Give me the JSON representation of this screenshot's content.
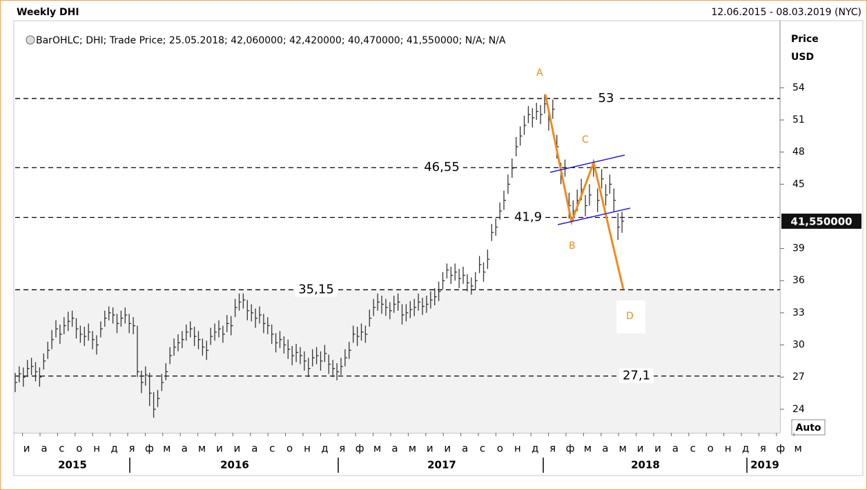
{
  "chart_data": {
    "type": "ohlc",
    "title": "Weekly DHI",
    "date_range": "12.06.2015 - 08.03.2019 (NYC)",
    "legend": "BarOHLC; DHI; Trade Price; 25.05.2018; 42,060000; 42,420000; 40,470000; 41,550000; N/A; N/A",
    "y_axis_label": "Price",
    "y_axis_unit": "USD",
    "scale_button": "Auto",
    "last_value_label": "41,550000",
    "ylim": [
      21.8,
      59.3
    ],
    "yticks": [
      24,
      27,
      30,
      33,
      36,
      39,
      45,
      48,
      51,
      54
    ],
    "months": [
      "и",
      "а",
      "с",
      "о",
      "н",
      "д",
      "я",
      "ф",
      "м",
      "а",
      "м",
      "и",
      "и",
      "а",
      "с",
      "о",
      "н",
      "д",
      "я",
      "ф",
      "м",
      "а",
      "м",
      "и",
      "и",
      "а",
      "с",
      "о",
      "н",
      "д",
      "я",
      "ф",
      "м",
      "а",
      "м",
      "и",
      "и",
      "а",
      "с",
      "о",
      "н",
      "д",
      "я",
      "ф",
      "м"
    ],
    "years": [
      2015,
      2016,
      2017,
      2018,
      2019
    ],
    "levels": [
      {
        "value": 53,
        "label": "53"
      },
      {
        "value": 46.55,
        "label": "46,55"
      },
      {
        "value": 41.9,
        "label": "41,9"
      },
      {
        "value": 35.15,
        "label": "35,15"
      },
      {
        "value": 27.1,
        "label": "27,1"
      }
    ],
    "pattern_labels": [
      "A",
      "B",
      "C",
      "D"
    ],
    "color": "#333333",
    "series": [
      {
        "name": "DHI",
        "close": [
          26.5,
          27.3,
          27.0,
          27.8,
          28.0,
          27.5,
          27.0,
          28.5,
          29.5,
          30.5,
          31.5,
          31.0,
          31.8,
          32.2,
          32.5,
          31.5,
          31.0,
          30.8,
          31.2,
          30.5,
          30.0,
          31.5,
          32.5,
          33.0,
          32.8,
          32.0,
          32.5,
          32.8,
          32.0,
          31.8,
          27.5,
          26.5,
          27.2,
          25.5,
          24.0,
          25.0,
          26.5,
          27.5,
          29.0,
          29.8,
          30.2,
          30.5,
          31.2,
          31.5,
          30.8,
          30.5,
          29.8,
          29.5,
          30.8,
          31.2,
          31.5,
          31.0,
          32.0,
          31.8,
          33.5,
          34.0,
          34.2,
          33.2,
          33.0,
          32.5,
          32.8,
          32.0,
          31.8,
          31.0,
          30.2,
          30.5,
          30.0,
          29.6,
          29.0,
          29.3,
          29.0,
          28.5,
          27.8,
          28.8,
          29.0,
          28.5,
          29.2,
          28.2,
          27.8,
          27.5,
          28.0,
          28.8,
          29.5,
          31.0,
          30.8,
          31.2,
          31.0,
          32.5,
          33.5,
          34.0,
          33.8,
          33.5,
          33.2,
          33.8,
          34.0,
          32.8,
          33.0,
          33.3,
          33.5,
          34.0,
          33.6,
          33.8,
          34.2,
          34.5,
          35.0,
          36.0,
          37.0,
          36.5,
          36.8,
          36.2,
          36.5,
          35.8,
          35.5,
          36.0,
          37.5,
          36.8,
          38.0,
          40.5,
          41.0,
          42.5,
          43.5,
          45.0,
          46.5,
          48.5,
          49.5,
          50.5,
          51.5,
          51.2,
          51.8,
          51.5,
          52.5,
          51.0,
          52.0,
          48.5,
          46.0,
          46.5,
          43.0,
          42.5,
          43.5,
          44.5,
          43.0,
          44.0,
          46.5,
          43.5,
          45.5,
          44.0,
          45.0,
          43.5,
          41.0,
          41.55
        ],
        "high": [
          27.4,
          28.0,
          27.9,
          28.6,
          28.8,
          28.4,
          27.9,
          29.2,
          30.3,
          31.4,
          32.3,
          31.9,
          32.6,
          33.1,
          33.2,
          32.5,
          31.8,
          31.7,
          32.0,
          31.3,
          30.9,
          32.2,
          33.2,
          33.6,
          33.5,
          32.9,
          33.2,
          33.5,
          32.9,
          32.6,
          31.8,
          27.6,
          28.0,
          27.4,
          25.6,
          25.8,
          27.3,
          28.3,
          29.8,
          30.6,
          31.0,
          31.3,
          31.9,
          32.2,
          31.7,
          31.3,
          30.6,
          30.4,
          31.6,
          32.0,
          32.3,
          31.8,
          32.8,
          32.7,
          34.3,
          34.8,
          34.8,
          34.2,
          33.8,
          33.4,
          33.6,
          32.9,
          32.6,
          31.9,
          31.1,
          31.3,
          30.8,
          30.5,
          29.9,
          30.1,
          29.8,
          29.4,
          28.8,
          29.6,
          29.8,
          29.4,
          30.0,
          29.1,
          28.6,
          28.3,
          28.8,
          29.6,
          30.3,
          31.8,
          31.7,
          32.0,
          31.8,
          33.3,
          34.3,
          34.8,
          34.6,
          34.3,
          34.0,
          34.6,
          34.8,
          33.8,
          33.8,
          34.1,
          34.3,
          34.8,
          34.4,
          34.6,
          35.0,
          35.3,
          35.9,
          36.8,
          37.6,
          37.3,
          37.6,
          37.1,
          37.3,
          36.6,
          36.3,
          36.8,
          38.3,
          37.7,
          38.9,
          41.3,
          41.8,
          43.3,
          44.4,
          45.9,
          47.4,
          49.4,
          50.4,
          51.4,
          52.3,
          52.1,
          52.6,
          52.4,
          53.4,
          52.0,
          52.9,
          49.6,
          47.0,
          47.3,
          44.2,
          43.5,
          44.5,
          45.5,
          44.0,
          45.0,
          47.3,
          44.6,
          46.4,
          45.0,
          45.9,
          44.6,
          42.3,
          42.42
        ],
        "low": [
          25.6,
          26.5,
          26.1,
          27.0,
          27.2,
          26.6,
          26.1,
          27.7,
          28.7,
          29.6,
          30.7,
          30.1,
          31.0,
          31.3,
          31.7,
          30.6,
          30.2,
          29.9,
          30.4,
          29.6,
          29.1,
          30.7,
          31.7,
          32.3,
          32.0,
          31.1,
          31.7,
          32.0,
          31.1,
          31.0,
          27.0,
          25.5,
          26.2,
          24.3,
          23.2,
          24.2,
          25.7,
          26.7,
          28.2,
          29.0,
          29.4,
          29.7,
          30.4,
          30.7,
          29.9,
          29.6,
          29.0,
          28.6,
          30.0,
          30.4,
          30.7,
          30.2,
          31.2,
          30.9,
          32.6,
          33.2,
          33.4,
          32.3,
          32.2,
          31.6,
          32.0,
          31.1,
          31.0,
          30.1,
          29.3,
          29.7,
          29.2,
          28.7,
          28.1,
          28.4,
          28.2,
          27.6,
          27.0,
          28.0,
          28.2,
          27.6,
          28.4,
          27.3,
          27.0,
          26.7,
          27.2,
          28.0,
          28.7,
          30.2,
          29.9,
          30.4,
          30.2,
          31.7,
          32.7,
          33.2,
          32.9,
          32.7,
          32.4,
          33.0,
          33.2,
          31.9,
          32.2,
          32.5,
          32.7,
          33.2,
          32.8,
          33.0,
          33.4,
          33.7,
          34.1,
          35.2,
          36.2,
          35.7,
          36.0,
          35.3,
          35.7,
          35.0,
          34.7,
          35.2,
          36.7,
          35.9,
          37.1,
          39.7,
          40.2,
          41.7,
          42.6,
          44.1,
          45.6,
          47.6,
          48.6,
          49.6,
          50.7,
          50.3,
          51.0,
          50.6,
          51.6,
          50.0,
          51.1,
          47.4,
          45.0,
          45.7,
          41.8,
          41.5,
          42.5,
          43.5,
          42.0,
          43.0,
          45.7,
          42.4,
          44.6,
          43.0,
          44.1,
          42.4,
          39.8,
          40.47
        ]
      }
    ]
  }
}
